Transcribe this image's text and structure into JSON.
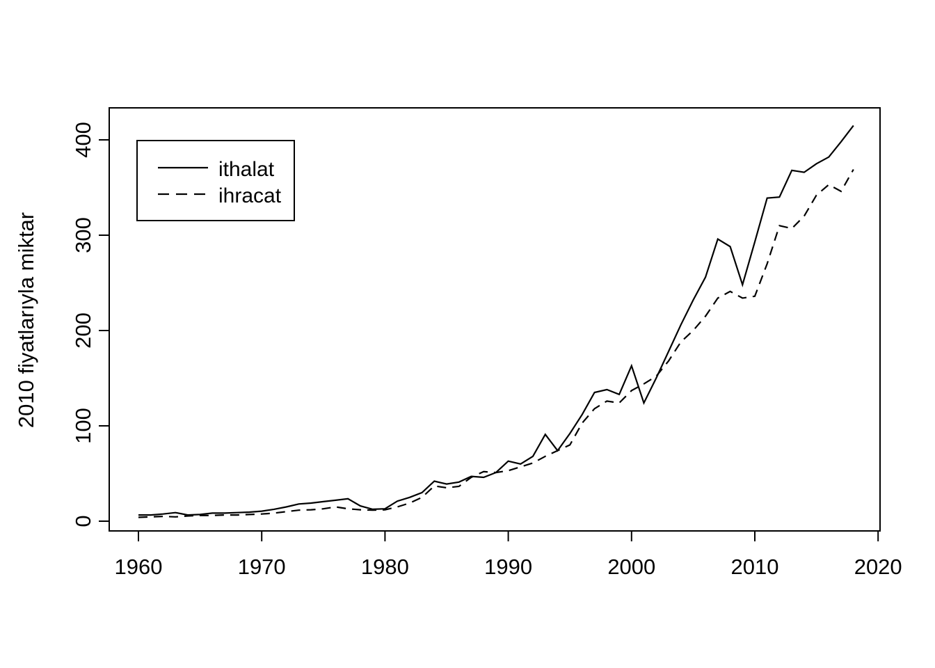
{
  "page": {
    "background": "#ffffff",
    "foreground": "#000000"
  },
  "chart_data": {
    "type": "line",
    "title": "",
    "xlabel": "",
    "ylabel": "2010 fiyatlarıyla miktar",
    "x_ticks": [
      1960,
      1970,
      1980,
      1990,
      2000,
      2010,
      2020
    ],
    "y_ticks": [
      0,
      100,
      200,
      300,
      400
    ],
    "xlim": [
      1957.6,
      2022.4
    ],
    "ylim": [
      -10,
      433
    ],
    "grid": false,
    "x": [
      1960,
      1961,
      1962,
      1963,
      1964,
      1965,
      1966,
      1967,
      1968,
      1969,
      1970,
      1971,
      1972,
      1973,
      1974,
      1975,
      1976,
      1977,
      1978,
      1979,
      1980,
      1981,
      1982,
      1983,
      1984,
      1985,
      1986,
      1987,
      1988,
      1989,
      1990,
      1991,
      1992,
      1993,
      1994,
      1995,
      1996,
      1997,
      1998,
      1999,
      2000,
      2001,
      2002,
      2003,
      2004,
      2005,
      2006,
      2007,
      2008,
      2009,
      2010,
      2011,
      2012,
      2013,
      2014,
      2015,
      2016,
      2017,
      2018
    ],
    "series": [
      {
        "name": "ithalat",
        "style": "solid",
        "color": "#000000",
        "values": [
          6.5,
          6.5,
          7.5,
          9,
          6.5,
          7,
          8.5,
          8.5,
          9,
          9.5,
          10.5,
          12.5,
          15,
          18,
          19,
          20.5,
          22,
          23.5,
          16,
          12.5,
          13,
          21,
          25,
          30,
          42,
          39,
          41,
          47,
          46,
          51,
          63,
          60,
          68,
          91,
          74,
          92,
          112,
          135,
          138,
          133,
          163,
          124,
          150,
          178,
          206,
          232,
          256,
          296,
          288,
          248,
          293,
          339,
          340,
          368,
          366,
          375,
          382,
          398,
          415
        ]
      },
      {
        "name": "ihracat",
        "style": "dashed",
        "color": "#000000",
        "values": [
          4,
          4.5,
          5,
          4.5,
          5.5,
          6,
          6,
          6.5,
          6.5,
          7,
          7.5,
          8.5,
          10,
          11.5,
          12,
          13,
          15,
          13,
          12,
          11.5,
          12,
          15,
          19,
          25,
          37,
          35,
          36.5,
          46,
          52,
          51,
          53,
          57,
          61,
          68,
          74,
          80,
          103,
          118,
          126,
          124,
          137,
          144,
          152,
          168,
          188,
          200,
          215,
          234,
          241,
          234,
          236,
          270,
          310,
          307,
          320,
          342,
          353,
          346,
          369
        ]
      }
    ],
    "legend": {
      "position": "top-left",
      "entries": [
        "ithalat",
        "ihracat"
      ]
    }
  }
}
